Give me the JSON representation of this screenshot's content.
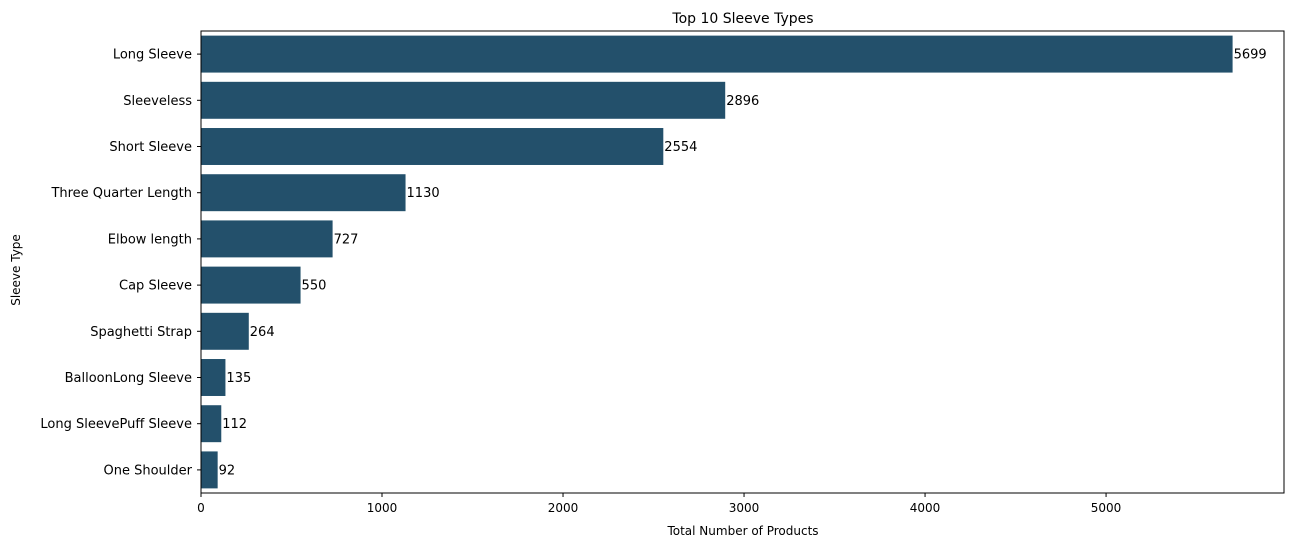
{
  "chart_data": {
    "type": "bar",
    "orientation": "horizontal",
    "title": "Top 10  Sleeve Types",
    "xlabel": "Total Number of Products",
    "ylabel": "Sleeve Type",
    "categories": [
      "Long Sleeve",
      "Sleeveless",
      "Short Sleeve",
      "Three Quarter Length",
      "Elbow length",
      "Cap Sleeve",
      "Spaghetti Strap",
      "BalloonLong Sleeve",
      "Long SleevePuff Sleeve",
      "One Shoulder"
    ],
    "values": [
      5699,
      2896,
      2554,
      1130,
      727,
      550,
      264,
      135,
      112,
      92
    ],
    "xticks": [
      0,
      1000,
      2000,
      3000,
      4000,
      5000
    ],
    "xlim": [
      0,
      5983
    ],
    "grid": false,
    "bar_color": "#23506b"
  }
}
